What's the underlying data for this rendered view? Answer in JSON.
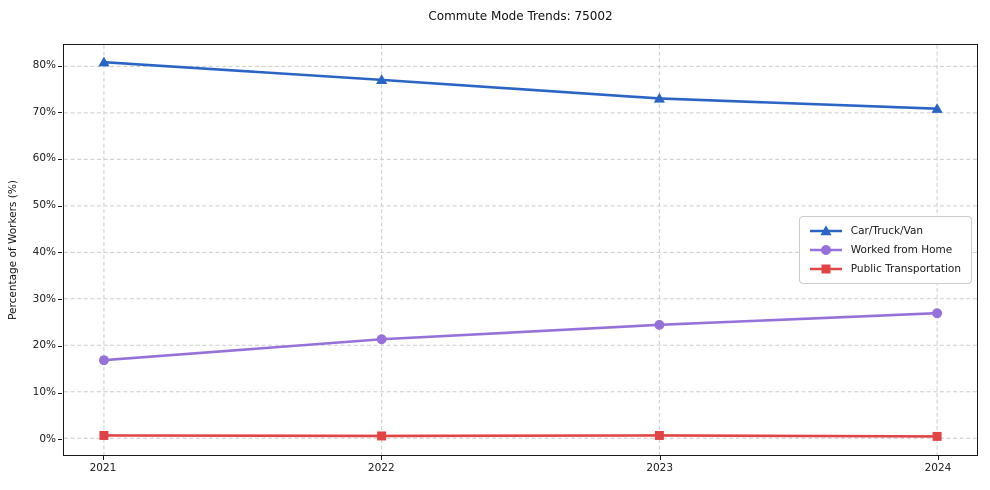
{
  "page": {
    "background": "#ffffff"
  },
  "chart_data": {
    "type": "line",
    "title": "Commute Mode Trends: 75002",
    "xlabel": "",
    "ylabel": "Percentage of Workers (%)",
    "categories": [
      "2021",
      "2022",
      "2023",
      "2024"
    ],
    "series": [
      {
        "name": "Car/Truck/Van",
        "values": [
          80.9,
          77.1,
          73.1,
          70.9
        ],
        "color": "#2a64c5",
        "marker": "triangle"
      },
      {
        "name": "Worked from Home",
        "values": [
          16.8,
          21.3,
          24.4,
          26.9
        ],
        "color": "#9571d9",
        "marker": "circle"
      },
      {
        "name": "Public Transportation",
        "values": [
          0.6,
          0.5,
          0.6,
          0.4
        ],
        "color": "#e04444",
        "marker": "square"
      }
    ],
    "yticks": [
      0,
      10,
      20,
      30,
      40,
      50,
      60,
      70,
      80
    ],
    "ytick_format": "{v}%",
    "ylim": [
      -3.6,
      84.6
    ],
    "grid": true,
    "grid_color": "#cccccc",
    "axis_color": "#1a1a1a",
    "legend_position": "center right"
  }
}
